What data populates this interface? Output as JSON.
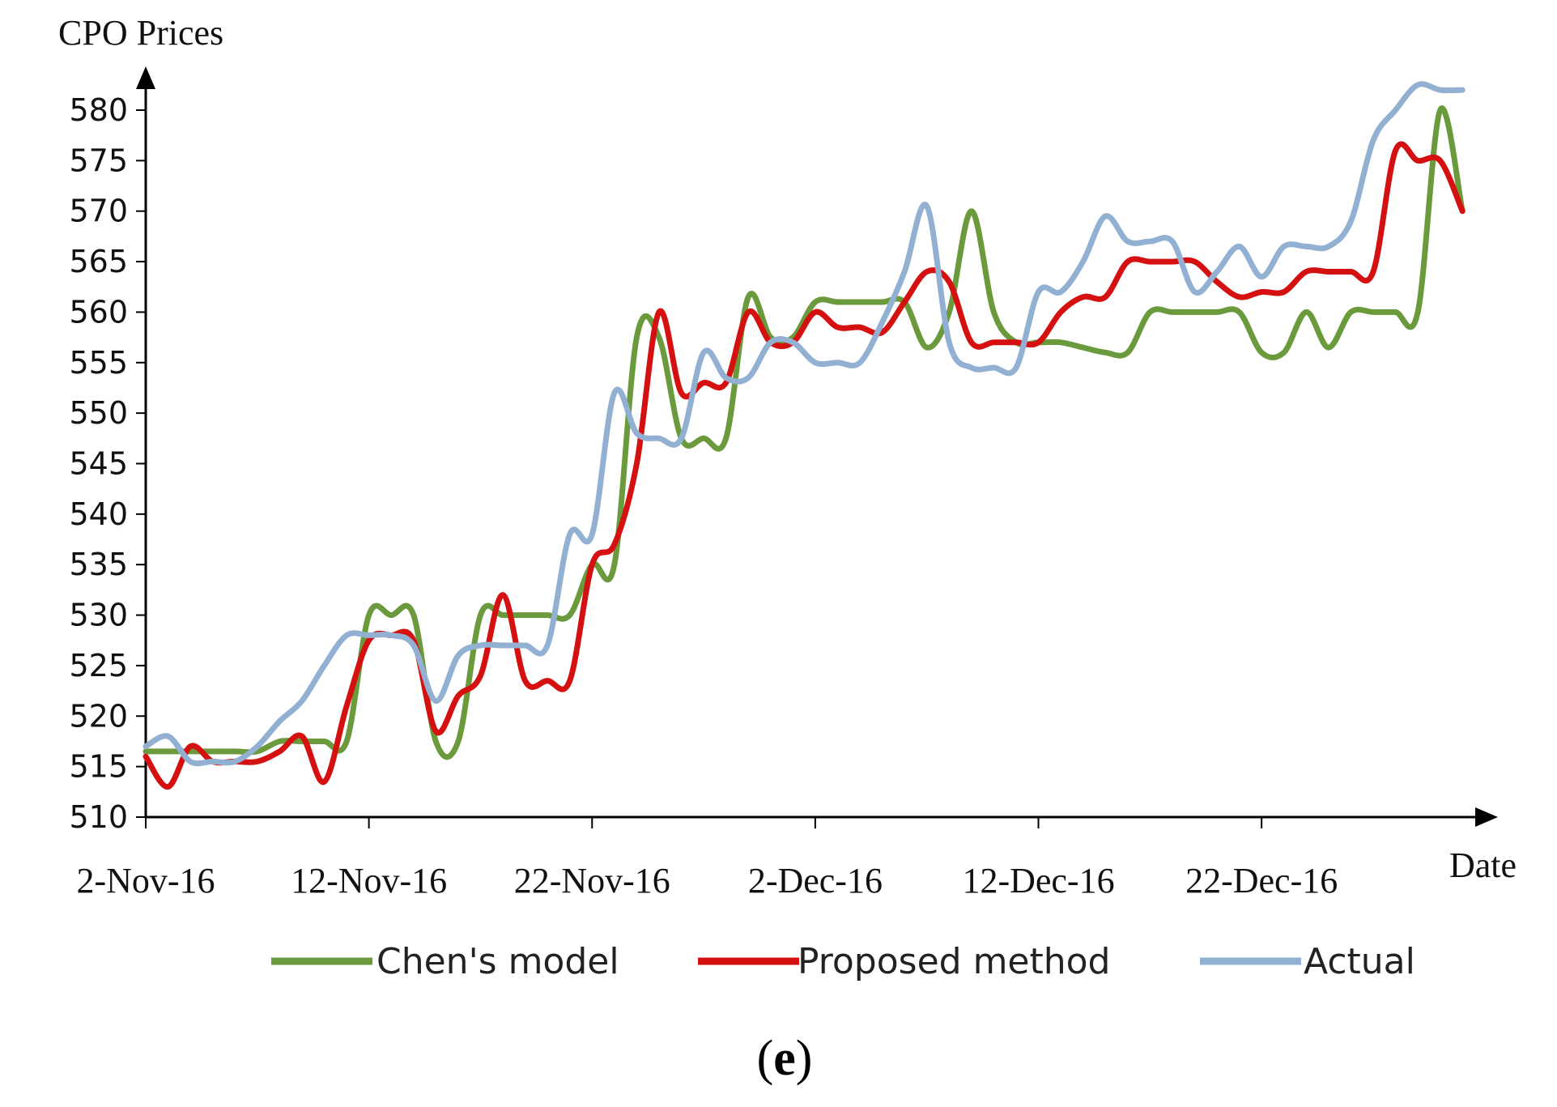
{
  "chart_data": {
    "type": "line",
    "ylabel": "CPO Prices",
    "xlabel": "Date",
    "caption": {
      "open": "(",
      "letter": "e",
      "close": ")"
    },
    "x_tick_labels": [
      "2-Nov-16",
      "12-Nov-16",
      "22-Nov-16",
      "2-Dec-16",
      "12-Dec-16",
      "22-Dec-16"
    ],
    "x_tick_days": [
      0,
      10,
      20,
      30,
      40,
      50
    ],
    "x_end_day": 59.5,
    "ylim": [
      510,
      580
    ],
    "y_ticks": [
      510,
      515,
      520,
      525,
      530,
      535,
      540,
      545,
      550,
      555,
      560,
      565,
      570,
      575,
      580
    ],
    "legend": {
      "position": "bottom"
    },
    "series": [
      {
        "name": "Chen's model",
        "color": "#6a9a3c",
        "x": [
          0,
          1,
          2,
          3,
          4,
          5,
          6,
          7,
          8,
          9,
          10,
          11,
          12,
          13,
          14,
          15,
          16,
          17,
          18,
          19,
          20,
          21,
          22,
          23,
          24,
          25,
          26,
          27,
          28,
          29,
          30,
          31,
          32,
          33,
          34,
          35,
          36,
          37,
          38,
          39,
          40,
          41,
          42,
          43,
          44,
          45,
          46,
          47,
          48,
          49,
          50,
          51,
          52,
          53,
          54,
          55,
          56,
          57,
          58,
          59
        ],
        "values": [
          516.5,
          516.5,
          516.5,
          516.5,
          516.5,
          516.5,
          517.5,
          517.5,
          517.5,
          517.5,
          530,
          530,
          530,
          517.5,
          517.5,
          530,
          530,
          530,
          530,
          530,
          535,
          535,
          557.5,
          557.5,
          547.5,
          547.5,
          547.5,
          561.5,
          557.5,
          557.5,
          561,
          561,
          561,
          561,
          561,
          556.5,
          560,
          570,
          560,
          557,
          557,
          557,
          556.5,
          556,
          556,
          560,
          560,
          560,
          560,
          560,
          556,
          556,
          560,
          556.5,
          560,
          560,
          560,
          560,
          580,
          570
        ]
      },
      {
        "name": "Proposed method",
        "color": "#d41010",
        "x": [
          0,
          1,
          2,
          3,
          4,
          5,
          6,
          7,
          8,
          9,
          10,
          11,
          12,
          13,
          14,
          15,
          16,
          17,
          18,
          19,
          20,
          21,
          22,
          23,
          24,
          25,
          26,
          27,
          28,
          29,
          30,
          31,
          32,
          33,
          34,
          35,
          36,
          37,
          38,
          39,
          40,
          41,
          42,
          43,
          44,
          45,
          46,
          47,
          48,
          49,
          50,
          51,
          52,
          53,
          54,
          55,
          56,
          57,
          58,
          59
        ],
        "values": [
          516,
          513,
          517,
          515.5,
          515.5,
          515.5,
          516.5,
          518,
          513.5,
          521,
          527.5,
          528,
          527.5,
          518.5,
          522,
          524,
          532,
          523.5,
          523.5,
          523.5,
          535,
          537,
          545,
          560,
          552,
          553,
          553,
          560,
          557,
          557,
          560,
          558.5,
          558.5,
          558,
          561,
          564,
          563,
          557,
          557,
          557,
          557,
          560,
          561.5,
          561.5,
          565,
          565,
          565,
          565,
          563,
          561.5,
          562,
          562,
          564,
          564,
          564,
          564,
          576,
          575,
          575,
          570
        ]
      },
      {
        "name": "Actual",
        "color": "#92b0d2",
        "x": [
          0,
          1,
          2,
          3,
          4,
          5,
          6,
          7,
          8,
          9,
          10,
          11,
          12,
          13,
          14,
          15,
          16,
          17,
          18,
          19,
          20,
          21,
          22,
          23,
          24,
          25,
          26,
          27,
          28,
          29,
          30,
          31,
          32,
          33,
          34,
          35,
          36,
          37,
          38,
          39,
          40,
          41,
          42,
          43,
          44,
          45,
          46,
          47,
          48,
          49,
          50,
          51,
          52,
          53,
          54,
          55,
          56,
          57,
          58,
          59
        ],
        "values": [
          517,
          518,
          515.5,
          515.5,
          515.5,
          517,
          519.5,
          521.5,
          525,
          528,
          528,
          528,
          527,
          521.5,
          526,
          527,
          527,
          527,
          527,
          538,
          538,
          552,
          548,
          547.5,
          547.5,
          556,
          553.5,
          553.5,
          557,
          557,
          555,
          555,
          555,
          559,
          564,
          570.5,
          557,
          554.5,
          554.5,
          554.5,
          562,
          562,
          565,
          569.5,
          567,
          567,
          567,
          562,
          564,
          566.5,
          563.5,
          566.5,
          566.5,
          566.5,
          569,
          577,
          580,
          582.5,
          582,
          582
        ]
      }
    ]
  }
}
